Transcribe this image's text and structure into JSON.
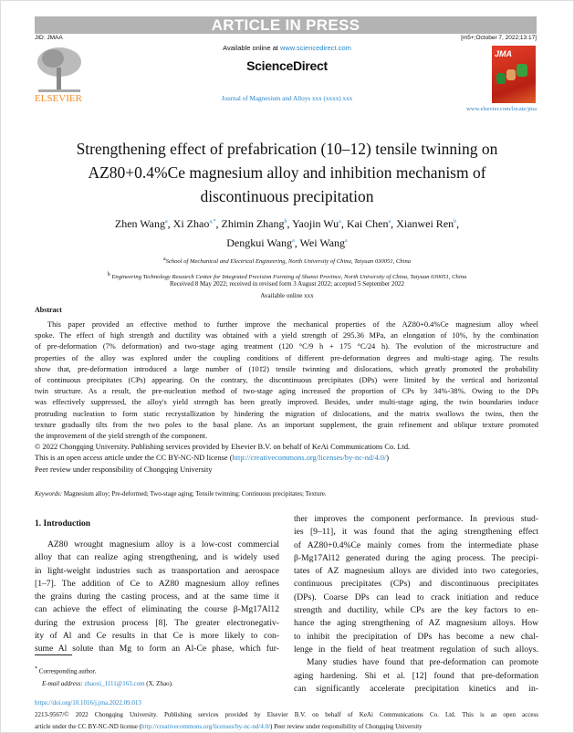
{
  "banner": "ARTICLE IN PRESS",
  "jid": "JID: JMAA",
  "stamp": "[m5+;October 7, 2022;13:17]",
  "publisher_logo": "ELSEVIER",
  "available_online_prefix": "Available online at ",
  "available_online_link": "www.sciencedirect.com",
  "sciencedirect": "ScienceDirect",
  "journal_line": "Journal of Magnesium and Alloys xxx (xxxx) xxx",
  "cover_logo": "JMA",
  "journal_url": "www.elsevier.com/locate/jma",
  "title_lines": [
    "Strengthening effect of prefabrication (10–12) tensile twinning on",
    "AZ80+0.4%Ce magnesium alloy and inhibition mechanism of",
    "discontinuous precipitation"
  ],
  "authors": [
    {
      "name": "Zhen Wang",
      "aff": "a"
    },
    {
      "name": "Xi Zhao",
      "aff": "a,*"
    },
    {
      "name": "Zhimin Zhang",
      "aff": "b"
    },
    {
      "name": "Yaojin Wu",
      "aff": "a"
    },
    {
      "name": "Kai Chen",
      "aff": "a"
    },
    {
      "name": "Xianwei Ren",
      "aff": "b"
    },
    {
      "name": "Dengkui Wang",
      "aff": "a"
    },
    {
      "name": "Wei Wang",
      "aff": "a"
    }
  ],
  "affiliations": [
    {
      "mark": "a",
      "text": "School of Mechanical and Electrical Engineering, North University of China, Taiyuan 030051, China"
    },
    {
      "mark": "b",
      "text": "Engineering Technology Research Center for Integrated Precision Forming of Shanxi Province, North University of China, Taiyuan 030051, China"
    }
  ],
  "received": "Received 8 May 2022; received in revised form 3 August 2022; accepted 5 September 2022",
  "available": "Available online xxx",
  "abstract_heading": "Abstract",
  "abstract_lines": [
    "This paper provided an effective method to further improve the mechanical properties of the AZ80+0.4%Ce magnesium alloy wheel",
    "spoke. The effect of high strength and ductility was obtained with a yield strength of 295.36 MPa, an elongation of 10%, by the combination",
    "of pre-deformation (7% deformation) and two-stage aging treatment (120 °C/9 h + 175 °C/24 h). The evolution of the microstructure and",
    "properties of the alloy was explored under the coupling conditions of different pre-deformation degrees and multi-stage aging. The results",
    "show that, pre-deformation introduced a large number of (101̄2) tensile twinning and dislocations, which greatly promoted the probability",
    "of continuous precipitates (CPs) appearing. On the contrary, the discontinuous precipitates (DPs) were limited by the vertical and horizontal",
    "twin structure. As a result, the pre-nucleation method of two-stage aging increased the proportion of CPs by 34%-38%. Owing to the DPs",
    "was effectively suppressed, the alloy's yield strength has been greatly improved. Besides, under multi-stage aging, the twin boundaries induce",
    "protruding nucleation to form static recrystallization by hindering the migration of dislocations, and the matrix swallows the twins, then the",
    "texture gradually tilts from the two poles to the basal plane. As an important supplement, the grain refinement and oblique texture promoted",
    "the improvement of the yield strength of the component."
  ],
  "copyright": "© 2022 Chongqing University. Publishing services provided by Elsevier B.V. on behalf of KeAi Communications Co. Ltd.",
  "license_prefix": "This is an open access article under the CC BY-NC-ND license (",
  "license_link": "http://creativecommons.org/licenses/by-nc-nd/4.0/",
  "license_suffix": ")",
  "peer_review": "Peer review under responsibility of Chongqing University",
  "keywords_label": "Keywords:",
  "keywords": "Magnesium alloy; Pre-deformed; Two-stage aging; Tensile twinning; Continuous precipitates; Texture.",
  "section_heading": "1. Introduction",
  "left_column": [
    "AZ80 wrought magnesium alloy is a low-cost commercial",
    "alloy that can realize aging strengthening, and is widely used",
    "in light-weight industries such as transportation and aerospace",
    "[1–7]. The addition of Ce to AZ80 magnesium alloy refines",
    "the grains during the casting process, and at the same time it",
    "can achieve the effect of eliminating the course β-Mg17Al12",
    "during the extrusion process [8]. The greater electronegativ-",
    "ity of Al and Ce results in that Ce is more likely to con-",
    "sume Al solute than Mg to form an Al-Ce phase, which fur-"
  ],
  "right_column": [
    "ther improves the component performance. In previous stud-",
    "ies [9–11], it was found that the aging strengthening effect",
    "of AZ80+0.4%Ce mainly comes from the intermediate phase",
    "β-Mg17Al12 generated during the aging process. The precipi-",
    "tates of AZ magnesium alloys are divided into two categories,",
    "continuous precipitates (CPs) and discontinuous precipitates",
    "(DPs). Coarse DPs can lead to crack initiation and reduce",
    "strength and ductility, while CPs are the key factors to en-",
    "hance the aging strengthening of AZ magnesium alloys. How",
    "to inhibit the precipitation of DPs has become a new chal-",
    "lenge in the field of heat treatment regulation of such alloys.",
    "Many studies have found that pre-deformation can promote",
    "aging hardening. Shi et al. [12] found that pre-deformation",
    "can significantly accelerate precipitation kinetics and in-"
  ],
  "footnote": {
    "mark": "*",
    "label": "Corresponding author.",
    "email_label": "E-mail address:",
    "email": "zhaoxi_1111@163.com",
    "email_suffix": "(X. Zhao)."
  },
  "doi": "https://doi.org/10.1016/j.jma.2022.09.013",
  "footer_line1": "2213-9567/© 2022 Chongqing University. Publishing services provided by Elsevier B.V. on behalf of KeAi Communications Co. Ltd. This is an open access",
  "footer_line2_prefix": "article under the CC BY-NC-ND license (",
  "footer_link": "http://creativecommons.org/licenses/by-nc-nd/4.0/",
  "footer_line2_suffix": ") Peer review under responsibility of Chongqing University",
  "colors": {
    "banner": "#b3b3b3",
    "link": "#2a86c8",
    "elsevier": "#f28c28",
    "cover": "#d8321e"
  }
}
